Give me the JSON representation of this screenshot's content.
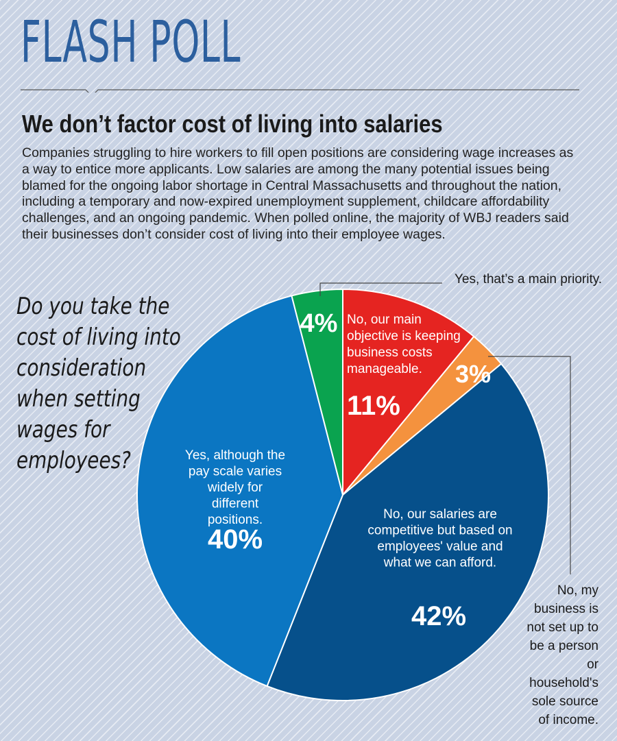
{
  "masthead": "FLASH POLL",
  "headline": "We don’t factor cost of living into salaries",
  "intro": "Companies struggling to hire workers to fill open positions are considering wage increases as a way to entice more applicants. Low salaries are among the many potential issues being blamed for the ongoing labor shortage in Central Massachusetts and throughout the nation, including a temporary and now-expired unemployment supplement, childcare affordability challenges, and an ongoing pandemic. When polled online, the majority of WBJ readers said their businesses don’t consider cost of living into their employee wages.",
  "chart_data": {
    "type": "pie",
    "title": "Do you take the cost of living into consideration when setting wages for employees?",
    "slices": [
      {
        "label": "No, our main objective is keeping business costs manageable.",
        "value": 11,
        "display": "11%",
        "color": "#e52421"
      },
      {
        "label": "No, my business is not set up to be a person or household's sole source of income.",
        "value": 3,
        "display": "3%",
        "color": "#f4923e"
      },
      {
        "label": "No, our salaries are competitive but based on employees' value and what we can afford.",
        "value": 42,
        "display": "42%",
        "color": "#06508b"
      },
      {
        "label": "Yes, although the pay scale varies widely for different positions.",
        "value": 40,
        "display": "40%",
        "color": "#0b76c2"
      },
      {
        "label": "Yes, that’s a main priority.",
        "value": 4,
        "display": "4%",
        "color": "#0aa34f"
      }
    ]
  }
}
